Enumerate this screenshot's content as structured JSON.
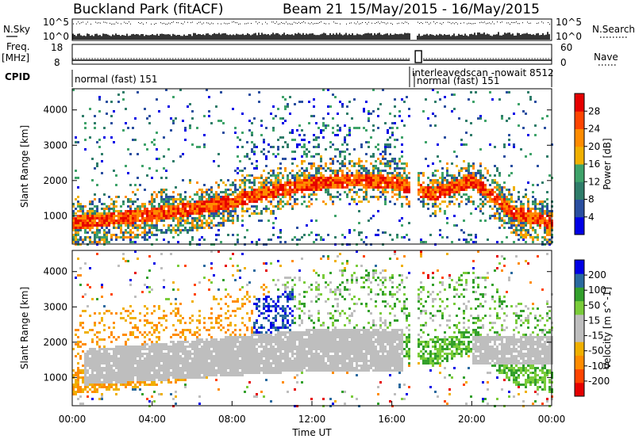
{
  "header": {
    "station": "Buckland Park (fitACF)",
    "beam": "Beam 21",
    "dates": "15/May/2015 - 16/May/2015"
  },
  "top_panels": {
    "nsky_label": "N.Sky",
    "nsearch_label": "N.Search",
    "n_ticks": [
      "10^5",
      "10^0"
    ],
    "freq_label": "Freq.",
    "freq_unit": "[MHz]",
    "freq_ticks": [
      "18",
      "8"
    ],
    "nave_label": "Nave",
    "nave_ticks": [
      "60",
      "0"
    ],
    "cpid_label": "CPID",
    "cpid_entries": [
      {
        "name": "normal (fast) 151",
        "start_hour": 0
      },
      {
        "name": "interleavedscan -nowait 8512",
        "start_hour": 17.2
      },
      {
        "name": "normal (fast) 151",
        "start_hour": 17.4
      }
    ]
  },
  "colors": {
    "power_scale": [
      "#0000e6",
      "#2a4fa0",
      "#2f7d6a",
      "#3fa36a",
      "#f0b000",
      "#ff8c00",
      "#ff4500",
      "#e60000"
    ],
    "velocity_scale": [
      "#e60000",
      "#ff4500",
      "#ff8c00",
      "#f0b000",
      "#bebebe",
      "#bebebe",
      "#7acc3a",
      "#33a02c",
      "#2a6a9f",
      "#0000e6"
    ],
    "ground_scatter": "#bebebe"
  },
  "chart_data": [
    {
      "type": "heatmap",
      "name": "power",
      "xlabel": "",
      "ylabel": "Slant Range [km]",
      "x_range_hours": [
        0,
        24
      ],
      "y_range_km": [
        200,
        4600
      ],
      "y_ticks": [
        1000,
        2000,
        3000,
        4000
      ],
      "colorbar_label": "Power [dB]",
      "colorbar_ticks": [
        4,
        8,
        12,
        16,
        20,
        24,
        28
      ],
      "colorbar_range": [
        0,
        32
      ],
      "data_gap_hours": [
        16.9,
        17.25
      ],
      "main_echo_band": [
        {
          "hour": 0,
          "range_km": 900
        },
        {
          "hour": 2,
          "range_km": 1000
        },
        {
          "hour": 4,
          "range_km": 1150
        },
        {
          "hour": 6,
          "range_km": 1300
        },
        {
          "hour": 8,
          "range_km": 1500
        },
        {
          "hour": 10,
          "range_km": 1800
        },
        {
          "hour": 12,
          "range_km": 2000
        },
        {
          "hour": 14,
          "range_km": 2100
        },
        {
          "hour": 16,
          "range_km": 2050
        },
        {
          "hour": 18,
          "range_km": 1700
        },
        {
          "hour": 20,
          "range_km": 2100
        },
        {
          "hour": 22,
          "range_km": 1200
        },
        {
          "hour": 24,
          "range_km": 900
        }
      ]
    },
    {
      "type": "heatmap",
      "name": "velocity",
      "xlabel": "Time UT",
      "ylabel": "Slant Range [km]",
      "x_range_hours": [
        0,
        24
      ],
      "x_ticks": [
        "00:00",
        "04:00",
        "08:00",
        "12:00",
        "16:00",
        "20:00",
        "00:00"
      ],
      "y_range_km": [
        200,
        4600
      ],
      "y_ticks": [
        1000,
        2000,
        3000,
        4000
      ],
      "colorbar_label": "Velocity [m s^-1]",
      "colorbar_ticks": [
        200,
        100,
        50,
        15,
        -15,
        -50,
        -100,
        -200
      ],
      "data_gap_hours": [
        16.9,
        17.25
      ]
    }
  ]
}
